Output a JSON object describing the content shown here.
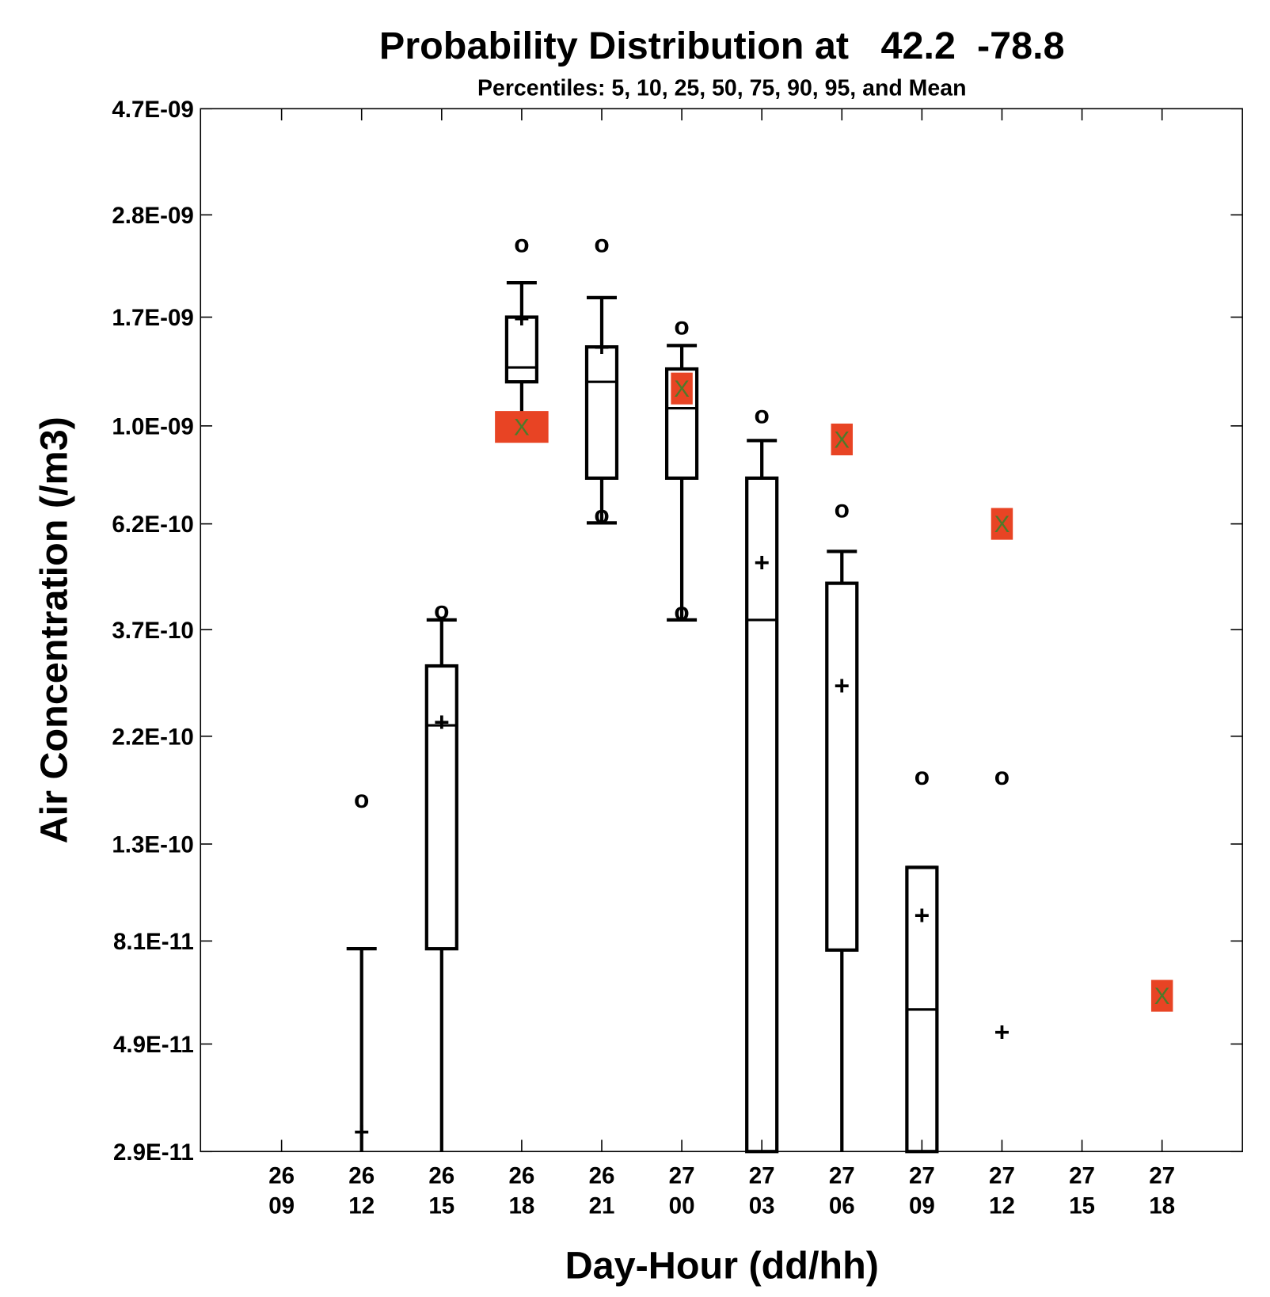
{
  "chart_data": {
    "type": "box",
    "title": "Probability Distribution at   42.2  -78.8",
    "subtitle": "Percentiles: 5, 10, 25, 50, 75, 90, 95, and Mean",
    "xlabel": "Day-Hour (dd/hh)",
    "ylabel": "Air Concentration (/m3)",
    "yscale": "log",
    "ylim": [
      2.9e-11,
      4.7e-09
    ],
    "y_tick_labels": [
      "4.7E-09",
      "2.8E-09",
      "1.7E-09",
      "1.0E-09",
      "6.2E-10",
      "3.7E-10",
      "2.2E-10",
      "1.3E-10",
      "8.1E-11",
      "4.9E-11",
      "2.9E-11"
    ],
    "categories": [
      {
        "day": "26",
        "hour": "09"
      },
      {
        "day": "26",
        "hour": "12"
      },
      {
        "day": "26",
        "hour": "15"
      },
      {
        "day": "26",
        "hour": "18"
      },
      {
        "day": "26",
        "hour": "21"
      },
      {
        "day": "27",
        "hour": "00"
      },
      {
        "day": "27",
        "hour": "03"
      },
      {
        "day": "27",
        "hour": "06"
      },
      {
        "day": "27",
        "hour": "09"
      },
      {
        "day": "27",
        "hour": "12"
      },
      {
        "day": "27",
        "hour": "15"
      },
      {
        "day": "27",
        "hour": "18"
      }
    ],
    "markers": {
      "percentile_outlier": "o",
      "mean": "+",
      "observed": "X"
    },
    "colors": {
      "observed_fill": "#e84424",
      "observed_text": "#4e7a2a",
      "box": "#000000"
    },
    "series": [
      {
        "p5": null,
        "p10": null,
        "p25": null,
        "p50": null,
        "p75": null,
        "p90": null,
        "p95": null,
        "mean": null,
        "observed": null
      },
      {
        "p5": 2e-11,
        "p10": 2e-11,
        "p25": 2e-11,
        "p50": 2e-11,
        "p75": 2e-11,
        "p90": 7.8e-11,
        "p95": 1.61e-10,
        "mean": 3.2e-11,
        "observed": null
      },
      {
        "p5": 2e-11,
        "p10": 2e-11,
        "p25": 7.8e-11,
        "p50": 2.32e-10,
        "p75": 3.1e-10,
        "p90": 3.88e-10,
        "p95": 4.05e-10,
        "mean": 2.36e-10,
        "observed": null
      },
      {
        "p5": null,
        "p10": 1e-09,
        "p25": 1.24e-09,
        "p50": 1.33e-09,
        "p75": 1.7e-09,
        "p90": 2.01e-09,
        "p95": 2.42e-09,
        "mean": 1.69e-09,
        "observed": 9.95e-10
      },
      {
        "p5": 6.46e-10,
        "p10": 6.23e-10,
        "p25": 7.75e-10,
        "p50": 1.24e-09,
        "p75": 1.47e-09,
        "p90": 1.87e-09,
        "p95": 2.42e-09,
        "mean": 1.47e-09,
        "observed": null
      },
      {
        "p5": 4.02e-10,
        "p10": 3.88e-10,
        "p25": 7.75e-10,
        "p50": 1.09e-09,
        "p75": 1.32e-09,
        "p90": 1.48e-09,
        "p95": 1.62e-09,
        "mean": null,
        "observed": 1.2e-09
      },
      {
        "p5": 2e-11,
        "p10": 2e-11,
        "p25": 2e-11,
        "p50": 3.88e-10,
        "p75": 7.75e-10,
        "p90": 9.31e-10,
        "p95": 1.05e-09,
        "mean": 5.14e-10,
        "observed": null
      },
      {
        "p5": 2e-11,
        "p10": 2e-11,
        "p25": 7.75e-11,
        "p50": 7.75e-11,
        "p75": 4.64e-10,
        "p90": 5.42e-10,
        "p95": 6.64e-10,
        "mean": 2.82e-10,
        "observed": 9.36e-10
      },
      {
        "p5": 2e-11,
        "p10": 2e-11,
        "p25": 2e-11,
        "p50": 5.8e-11,
        "p75": 1.16e-10,
        "p90": 1.16e-10,
        "p95": 1.8e-10,
        "mean": 9.2e-11,
        "observed": null
      },
      {
        "p5": null,
        "p10": null,
        "p25": null,
        "p50": null,
        "p75": null,
        "p90": null,
        "p95": 1.8e-10,
        "mean": 5.2e-11,
        "observed": 6.2e-10
      },
      {
        "p5": null,
        "p10": null,
        "p25": null,
        "p50": null,
        "p75": null,
        "p90": null,
        "p95": null,
        "mean": null,
        "observed": null
      },
      {
        "p5": null,
        "p10": null,
        "p25": null,
        "p50": null,
        "p75": null,
        "p90": null,
        "p95": null,
        "mean": null,
        "observed": 6.2e-11
      }
    ]
  }
}
